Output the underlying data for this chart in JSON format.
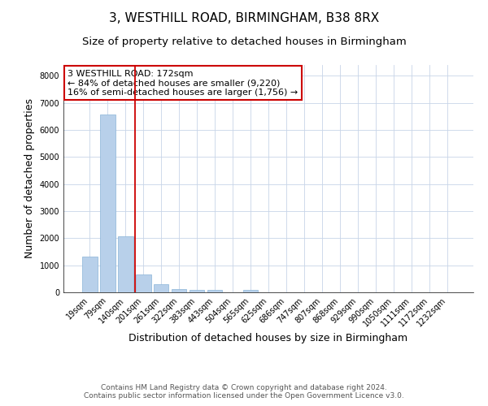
{
  "title": "3, WESTHILL ROAD, BIRMINGHAM, B38 8RX",
  "subtitle": "Size of property relative to detached houses in Birmingham",
  "xlabel": "Distribution of detached houses by size in Birmingham",
  "ylabel": "Number of detached properties",
  "categories": [
    "19sqm",
    "79sqm",
    "140sqm",
    "201sqm",
    "261sqm",
    "322sqm",
    "383sqm",
    "443sqm",
    "504sqm",
    "565sqm",
    "625sqm",
    "686sqm",
    "747sqm",
    "807sqm",
    "868sqm",
    "929sqm",
    "990sqm",
    "1050sqm",
    "1111sqm",
    "1172sqm",
    "1232sqm"
  ],
  "values": [
    1320,
    6580,
    2080,
    650,
    300,
    130,
    105,
    85,
    0,
    85,
    0,
    0,
    0,
    0,
    0,
    0,
    0,
    0,
    0,
    0,
    0
  ],
  "bar_color": "#b8d0ea",
  "bar_edge_color": "#8ab4d8",
  "vline_color": "#cc0000",
  "annotation_text": "3 WESTHILL ROAD: 172sqm\n← 84% of detached houses are smaller (9,220)\n16% of semi-detached houses are larger (1,756) →",
  "annotation_box_color": "#ffffff",
  "annotation_box_edge_color": "#cc0000",
  "ylim": [
    0,
    8400
  ],
  "yticks": [
    0,
    1000,
    2000,
    3000,
    4000,
    5000,
    6000,
    7000,
    8000
  ],
  "footer_line1": "Contains HM Land Registry data © Crown copyright and database right 2024.",
  "footer_line2": "Contains public sector information licensed under the Open Government Licence v3.0.",
  "bg_color": "#ffffff",
  "grid_color": "#c8d4e8",
  "title_fontsize": 11,
  "subtitle_fontsize": 9.5,
  "axis_label_fontsize": 9,
  "tick_fontsize": 7,
  "annotation_fontsize": 8,
  "footer_fontsize": 6.5
}
